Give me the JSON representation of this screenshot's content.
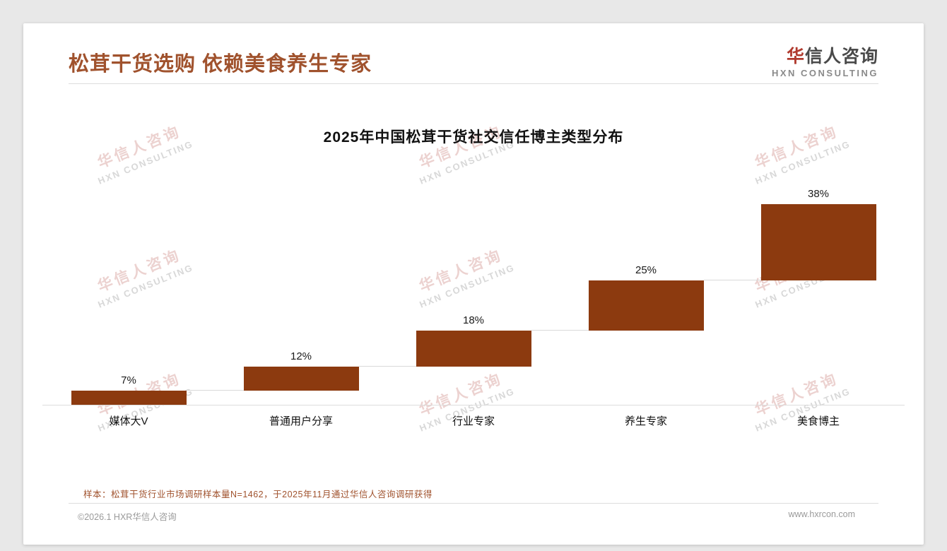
{
  "header": {
    "title": "松茸干货选购 依赖美食养生专家",
    "logo": {
      "accent": "华",
      "rest": "信人咨询",
      "subtitle": "HXN CONSULTING"
    }
  },
  "chart_data": {
    "type": "bar",
    "subtype": "waterfall",
    "title": "2025年中国松茸干货社交信任博主类型分布",
    "categories": [
      "媒体大V",
      "普通用户分享",
      "行业专家",
      "养生专家",
      "美食博主"
    ],
    "values": [
      7,
      12,
      18,
      25,
      38
    ],
    "labels": [
      "7%",
      "12%",
      "18%",
      "25%",
      "38%"
    ],
    "unit": "%",
    "ylim": [
      0,
      100
    ],
    "grid": false,
    "legend": "none",
    "bar_color": "#8C3A0F",
    "connector_color": "#d9d9d9",
    "note": "bars are stacked ascending (waterfall), cumulative total = 100%"
  },
  "watermark": {
    "line1": "华信人咨询",
    "line2": "HXN CONSULTING"
  },
  "source_note": "样本：松茸干货行业市场调研样本量N=1462，于2025年11月通过华信人咨询调研获得",
  "footer": {
    "left": "©2026.1 HXR华信人咨询",
    "right": "www.hxrcon.com"
  },
  "colors": {
    "accent_brown": "#A0522D",
    "bar_brown": "#8C3A0F"
  }
}
